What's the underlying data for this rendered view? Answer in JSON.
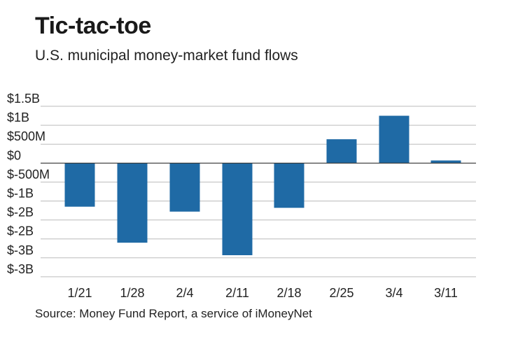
{
  "title": "Tic-tac-toe",
  "subtitle": "U.S. municipal money-market fund flows",
  "source": "Source: Money Fund Report, a service of iMoneyNet",
  "chart_data": {
    "type": "bar",
    "title": "Tic-tac-toe",
    "subtitle": "U.S. municipal money-market fund flows",
    "xlabel": "",
    "ylabel": "",
    "categories": [
      "1/21",
      "1/28",
      "2/4",
      "2/11",
      "2/18",
      "2/25",
      "3/4",
      "3/11"
    ],
    "values": [
      -1150000000,
      -2100000000,
      -1280000000,
      -2430000000,
      -1180000000,
      630000000,
      1250000000,
      70000000
    ],
    "yticks": [
      1500000000,
      1000000000,
      500000000,
      0,
      -500000000,
      -1000000000,
      -1500000000,
      -2000000000,
      -2500000000,
      -3000000000
    ],
    "ytick_labels": [
      "$1.5B",
      "$1B",
      "$500M",
      "$0",
      "$-500M",
      "$-1B",
      "$-2B",
      "$-2B",
      "$-3B",
      "$-3B"
    ],
    "ylim": [
      -3000000000,
      1500000000
    ],
    "grid": true,
    "bar_color": "#1f6aa5",
    "grid_color": "#bbbbbb",
    "zero_line_color": "#333333"
  }
}
